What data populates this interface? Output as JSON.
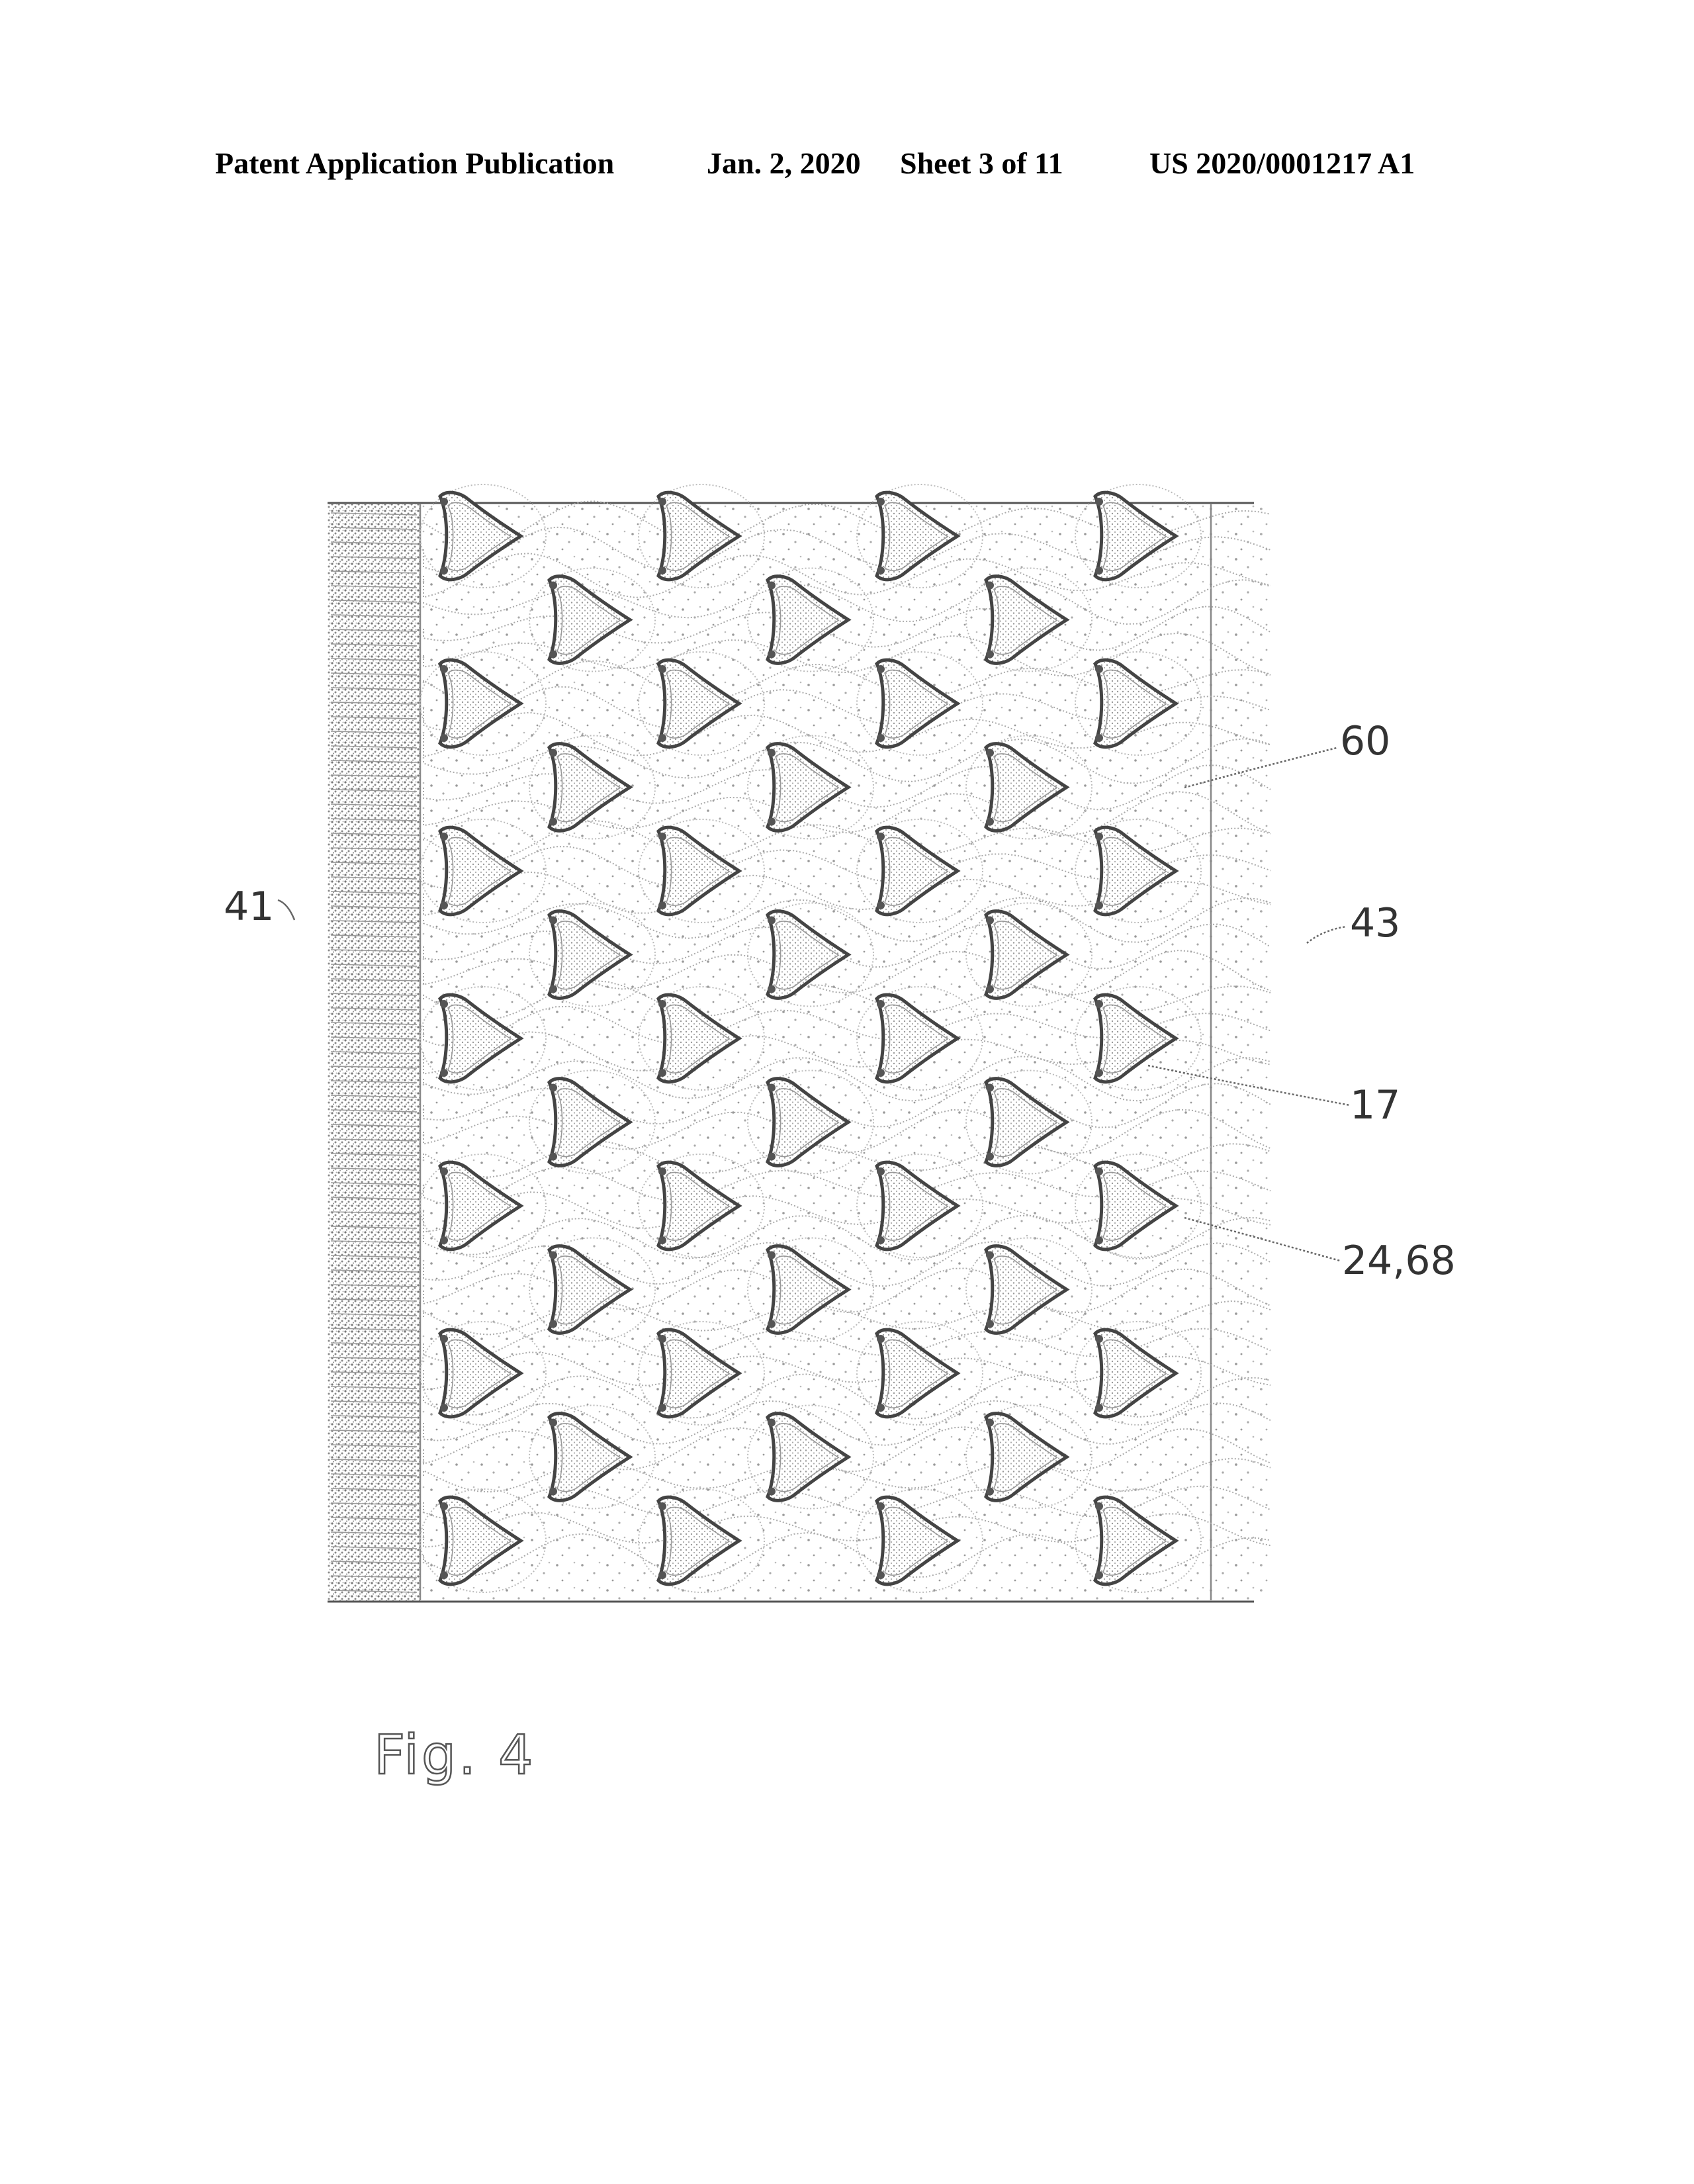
{
  "header": {
    "publication": "Patent Application Publication",
    "date": "Jan. 2, 2020",
    "sheet": "Sheet 3 of 11",
    "number": "US 2020/0001217 A1"
  },
  "figure": {
    "caption": "Fig. 4",
    "reference_labels": [
      "41",
      "60",
      "43",
      "17",
      "24,68"
    ]
  }
}
